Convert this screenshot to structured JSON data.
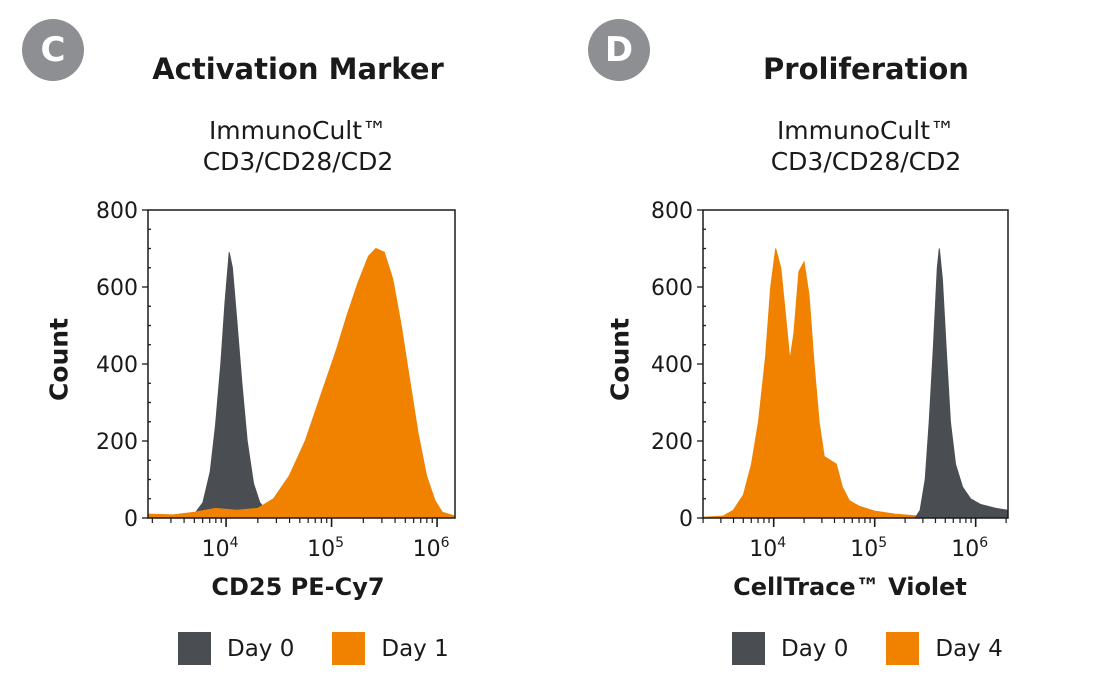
{
  "colors": {
    "day0": "#4a4e53",
    "treated": "#f08200",
    "badge": "#8e8f93",
    "axis": "#1a1a1a"
  },
  "chart_data": [
    {
      "panel": "C",
      "type": "area",
      "title": "Activation Marker",
      "subtitle_lines": [
        "ImmunoCult™",
        "CD3/CD28/CD2"
      ],
      "xlabel": "CD25 PE-Cy7",
      "ylabel": "Count",
      "xscale": "log",
      "xlim_log10": [
        3.26,
        6.17
      ],
      "ylim": [
        0,
        800
      ],
      "yticks": [
        0,
        200,
        400,
        600,
        800
      ],
      "xticks": [
        {
          "log10": 4,
          "label_base": "10",
          "label_exp": "4"
        },
        {
          "log10": 5,
          "label_base": "10",
          "label_exp": "5"
        },
        {
          "log10": 6,
          "label_base": "10",
          "label_exp": "6"
        }
      ],
      "grid": false,
      "legend_position": "bottom",
      "series": [
        {
          "name": "Day 0",
          "color_key": "day0",
          "points": [
            [
              3.26,
              0
            ],
            [
              3.55,
              2
            ],
            [
              3.7,
              10
            ],
            [
              3.78,
              40
            ],
            [
              3.85,
              120
            ],
            [
              3.9,
              240
            ],
            [
              3.95,
              400
            ],
            [
              3.99,
              560
            ],
            [
              4.03,
              690
            ],
            [
              4.06,
              650
            ],
            [
              4.1,
              520
            ],
            [
              4.15,
              350
            ],
            [
              4.2,
              200
            ],
            [
              4.26,
              90
            ],
            [
              4.32,
              40
            ],
            [
              4.38,
              20
            ],
            [
              4.5,
              12
            ],
            [
              4.7,
              5
            ],
            [
              4.9,
              2
            ],
            [
              5.0,
              0
            ]
          ]
        },
        {
          "name": "Day 1",
          "color_key": "treated",
          "points": [
            [
              3.26,
              10
            ],
            [
              3.5,
              8
            ],
            [
              3.7,
              15
            ],
            [
              3.9,
              25
            ],
            [
              4.1,
              20
            ],
            [
              4.3,
              25
            ],
            [
              4.45,
              50
            ],
            [
              4.6,
              110
            ],
            [
              4.75,
              200
            ],
            [
              4.9,
              320
            ],
            [
              5.05,
              440
            ],
            [
              5.15,
              530
            ],
            [
              5.25,
              610
            ],
            [
              5.35,
              680
            ],
            [
              5.42,
              700
            ],
            [
              5.5,
              690
            ],
            [
              5.58,
              620
            ],
            [
              5.66,
              500
            ],
            [
              5.74,
              360
            ],
            [
              5.82,
              220
            ],
            [
              5.9,
              110
            ],
            [
              5.98,
              45
            ],
            [
              6.05,
              15
            ],
            [
              6.17,
              5
            ]
          ]
        }
      ]
    },
    {
      "panel": "D",
      "type": "area",
      "title": "Proliferation",
      "subtitle_lines": [
        "ImmunoCult™",
        "CD3/CD28/CD2"
      ],
      "xlabel": "CellTrace™ Violet",
      "ylabel": "Count",
      "xscale": "log",
      "xlim_log10": [
        3.3,
        6.32
      ],
      "ylim": [
        0,
        800
      ],
      "yticks": [
        0,
        200,
        400,
        600,
        800
      ],
      "xticks": [
        {
          "log10": 4,
          "label_base": "10",
          "label_exp": "4"
        },
        {
          "log10": 5,
          "label_base": "10",
          "label_exp": "5"
        },
        {
          "log10": 6,
          "label_base": "10",
          "label_exp": "6"
        }
      ],
      "grid": false,
      "legend_position": "bottom",
      "series": [
        {
          "name": "Day 4",
          "color_key": "treated",
          "points": [
            [
              3.3,
              2
            ],
            [
              3.5,
              5
            ],
            [
              3.6,
              20
            ],
            [
              3.7,
              60
            ],
            [
              3.78,
              140
            ],
            [
              3.85,
              250
            ],
            [
              3.92,
              420
            ],
            [
              3.97,
              600
            ],
            [
              4.02,
              700
            ],
            [
              4.07,
              650
            ],
            [
              4.12,
              520
            ],
            [
              4.16,
              410
            ],
            [
              4.2,
              480
            ],
            [
              4.25,
              640
            ],
            [
              4.3,
              665
            ],
            [
              4.35,
              580
            ],
            [
              4.4,
              400
            ],
            [
              4.45,
              250
            ],
            [
              4.5,
              160
            ],
            [
              4.56,
              150
            ],
            [
              4.62,
              140
            ],
            [
              4.68,
              80
            ],
            [
              4.75,
              45
            ],
            [
              4.85,
              30
            ],
            [
              5.0,
              18
            ],
            [
              5.2,
              10
            ],
            [
              5.4,
              6
            ],
            [
              5.6,
              2
            ],
            [
              6.32,
              0
            ]
          ]
        },
        {
          "name": "Day 0",
          "color_key": "day0",
          "points": [
            [
              5.4,
              0
            ],
            [
              5.45,
              20
            ],
            [
              5.5,
              100
            ],
            [
              5.54,
              250
            ],
            [
              5.58,
              440
            ],
            [
              5.62,
              650
            ],
            [
              5.64,
              700
            ],
            [
              5.67,
              620
            ],
            [
              5.71,
              430
            ],
            [
              5.75,
              250
            ],
            [
              5.8,
              140
            ],
            [
              5.87,
              80
            ],
            [
              5.95,
              50
            ],
            [
              6.05,
              35
            ],
            [
              6.2,
              25
            ],
            [
              6.32,
              20
            ]
          ]
        }
      ],
      "draw_order": [
        0,
        1
      ]
    }
  ],
  "panels": [
    {
      "badge": "C",
      "title": "Activation Marker",
      "subtitle_1": "ImmunoCult™",
      "subtitle_2": "CD3/CD28/CD2",
      "xlabel": "CD25 PE-Cy7",
      "ylabel": "Count",
      "legend": [
        {
          "label": "Day 0",
          "color_key": "day0"
        },
        {
          "label": "Day 1",
          "color_key": "treated"
        }
      ]
    },
    {
      "badge": "D",
      "title": "Proliferation",
      "subtitle_1": "ImmunoCult™",
      "subtitle_2": "CD3/CD28/CD2",
      "xlabel": "CellTrace™ Violet",
      "ylabel": "Count",
      "legend": [
        {
          "label": "Day 0",
          "color_key": "day0"
        },
        {
          "label": "Day 4",
          "color_key": "treated"
        }
      ]
    }
  ]
}
